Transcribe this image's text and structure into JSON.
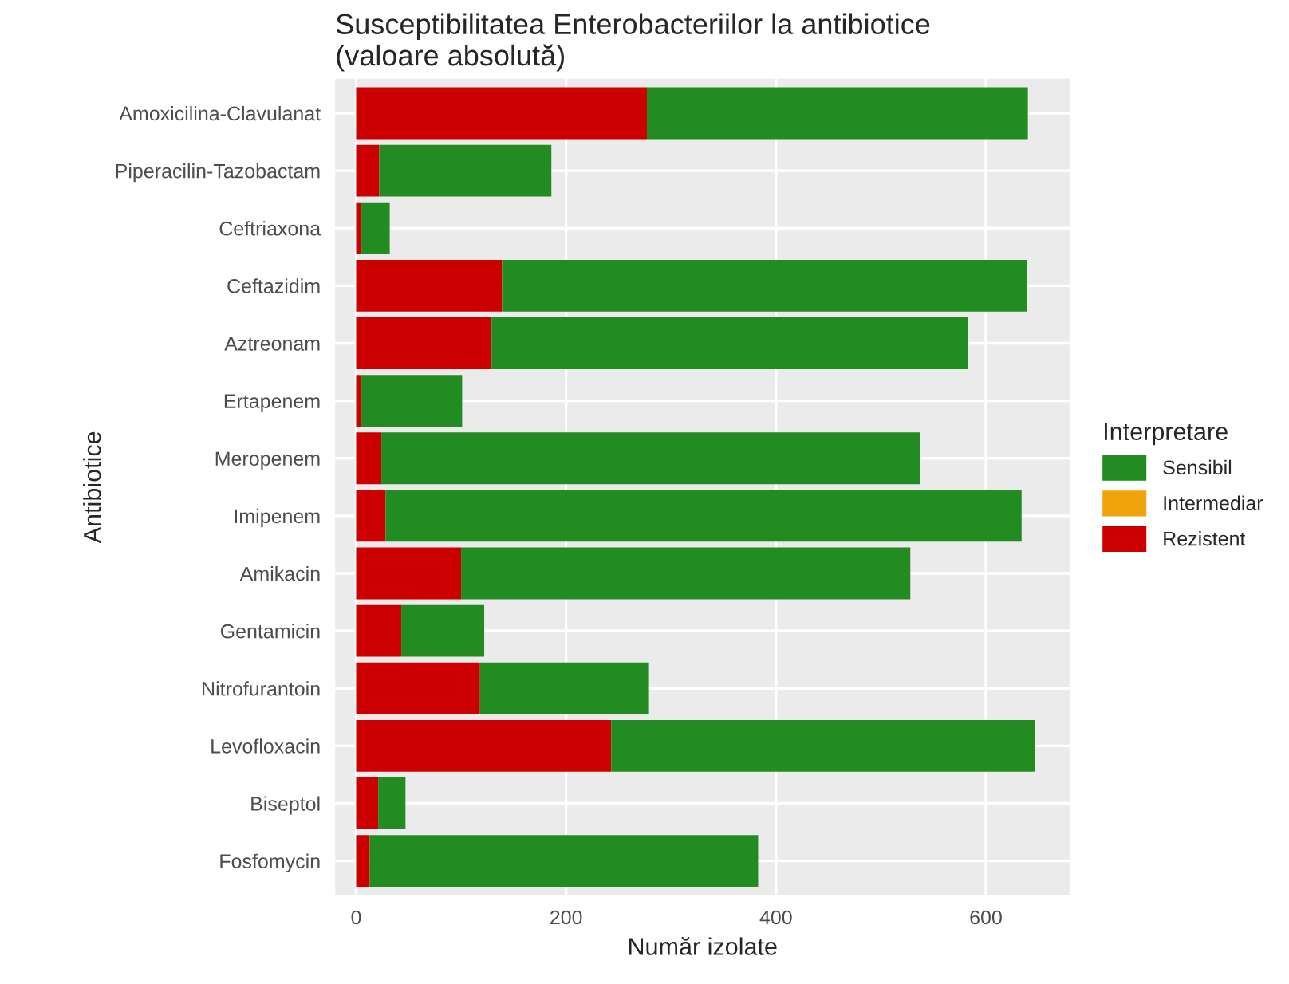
{
  "chart_data": {
    "type": "bar",
    "orientation": "horizontal",
    "stacked": true,
    "title": "Susceptibilitatea Enterobacteriilor la antibiotice\n(valoare absolută)",
    "xlabel": "Număr izolate",
    "ylabel": "Antibiotice",
    "legend_title": "Interpretare",
    "categories": [
      "Amoxicilina-Clavulanat",
      "Piperacilin-Tazobactam",
      "Ceftriaxona",
      "Ceftazidim",
      "Aztreonam",
      "Ertapenem",
      "Meropenem",
      "Imipenem",
      "Amikacin",
      "Gentamicin",
      "Nitrofurantoin",
      "Levofloxacin",
      "Biseptol",
      "Fosfomycin"
    ],
    "series": [
      {
        "name": "Rezistent",
        "color": "#cc0000",
        "values": [
          277,
          22,
          5,
          139,
          129,
          5,
          24,
          28,
          100,
          43,
          118,
          243,
          21,
          13
        ]
      },
      {
        "name": "Intermediar",
        "color": "#f0a30a",
        "values": [
          0,
          0,
          0,
          0,
          0,
          0,
          0,
          0,
          0,
          0,
          0,
          0,
          0,
          0
        ]
      },
      {
        "name": "Sensibil",
        "color": "#228b22",
        "values": [
          363,
          164,
          27,
          500,
          454,
          96,
          513,
          606,
          428,
          79,
          161,
          404,
          26,
          370
        ]
      }
    ],
    "xlim": [
      -20,
      680
    ],
    "xticks": [
      0,
      200,
      400,
      600
    ],
    "grid": true,
    "legend": "right"
  }
}
